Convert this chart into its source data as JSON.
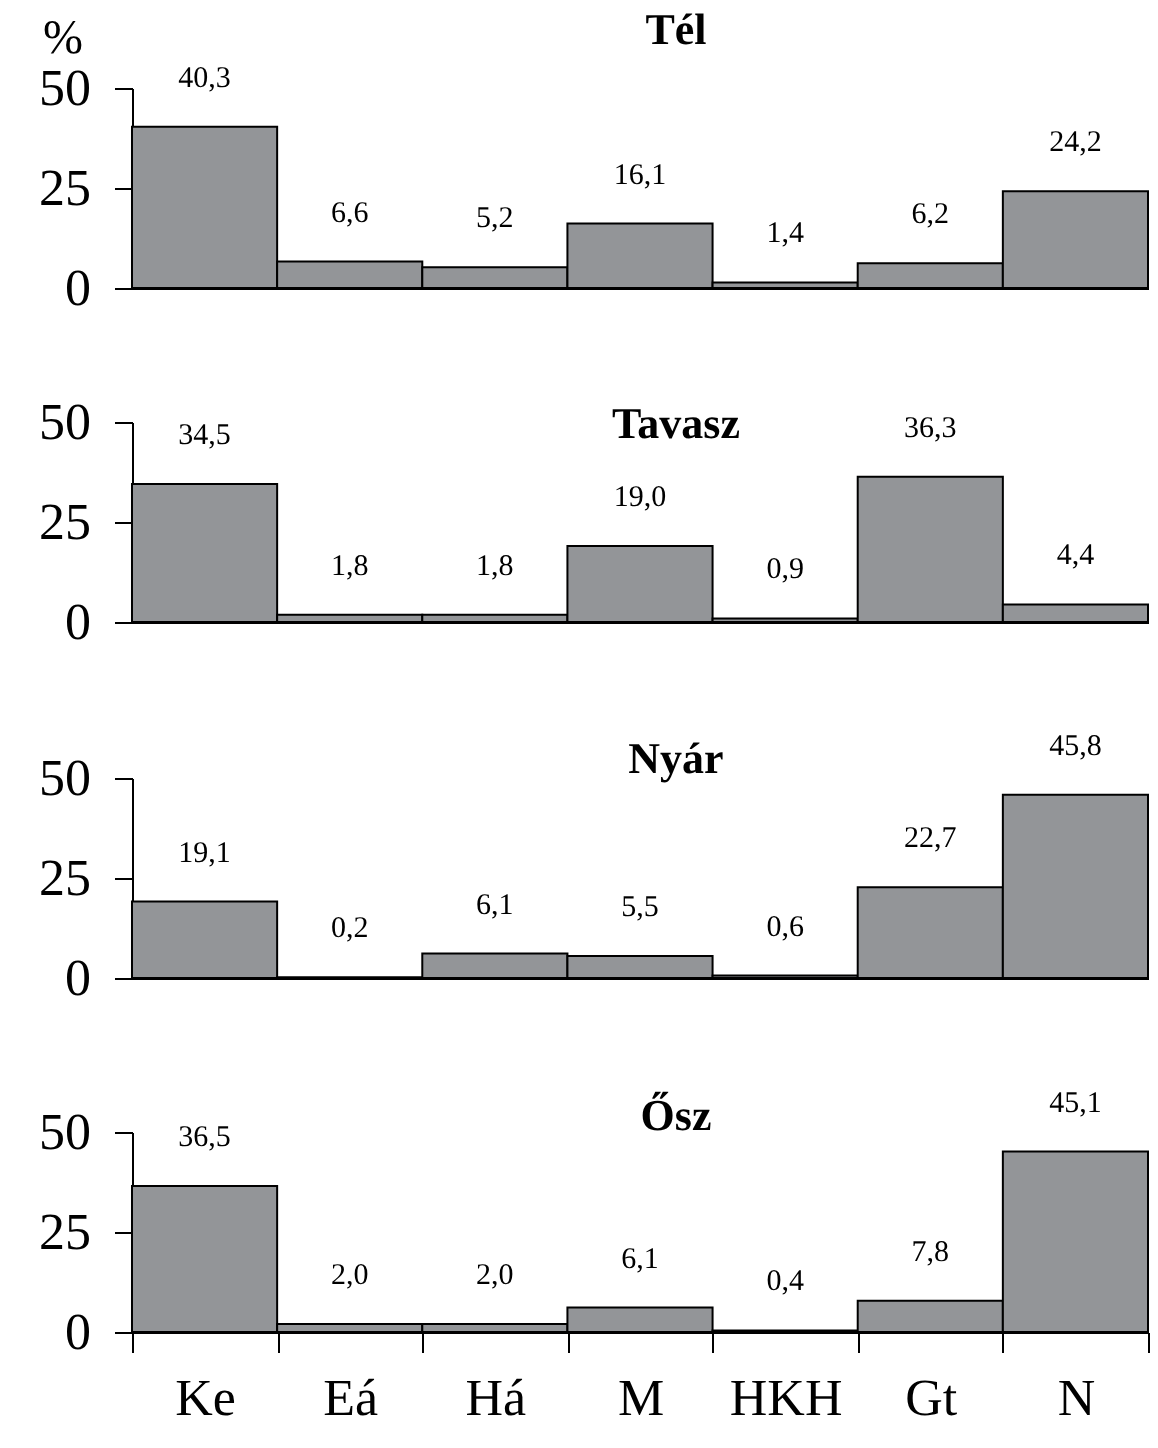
{
  "chart_data": [
    {
      "type": "bar",
      "title": "Tél",
      "ylabel": "%",
      "categories": [
        "Ke",
        "Eá",
        "Há",
        "M",
        "HKH",
        "Gt",
        "N"
      ],
      "values": [
        40.3,
        6.6,
        5.2,
        16.1,
        1.4,
        6.2,
        24.2
      ],
      "value_labels": [
        "40,3",
        "6,6",
        "5,2",
        "16,1",
        "1,4",
        "6,2",
        "24,2"
      ],
      "color": "#939598",
      "ylim": [
        0,
        50
      ],
      "yticks": [
        0,
        25,
        50
      ],
      "tick_labels": "y"
    },
    {
      "type": "bar",
      "title": "Tavasz",
      "categories": [
        "Ke",
        "Eá",
        "Há",
        "M",
        "HKH",
        "Gt",
        "N"
      ],
      "values": [
        34.5,
        1.8,
        1.8,
        19.0,
        0.9,
        36.3,
        4.4
      ],
      "value_labels": [
        "34,5",
        "1,8",
        "1,8",
        "19,0",
        "0,9",
        "36,3",
        "4,4"
      ],
      "color": "#939598",
      "ylim": [
        0,
        50
      ],
      "yticks": [
        0,
        25,
        50
      ],
      "tick_labels": "y"
    },
    {
      "type": "bar",
      "title": "Nyár",
      "categories": [
        "Ke",
        "Eá",
        "Há",
        "M",
        "HKH",
        "Gt",
        "N"
      ],
      "values": [
        19.1,
        0.2,
        6.1,
        5.5,
        0.6,
        22.7,
        45.8
      ],
      "value_labels": [
        "19,1",
        "0,2",
        "6,1",
        "5,5",
        "0,6",
        "22,7",
        "45,8"
      ],
      "color": "#939598",
      "ylim": [
        0,
        50
      ],
      "yticks": [
        0,
        25,
        50
      ],
      "tick_labels": "y"
    },
    {
      "type": "bar",
      "title": "Ősz",
      "categories": [
        "Ke",
        "Eá",
        "Há",
        "M",
        "HKH",
        "Gt",
        "N"
      ],
      "values": [
        36.5,
        2.0,
        2.0,
        6.1,
        0.4,
        7.8,
        45.1
      ],
      "value_labels": [
        "36,5",
        "2,0",
        "2,0",
        "6,1",
        "0,4",
        "7,8",
        "45,1"
      ],
      "color": "#939598",
      "ylim": [
        0,
        50
      ],
      "yticks": [
        0,
        25,
        50
      ]
    }
  ]
}
